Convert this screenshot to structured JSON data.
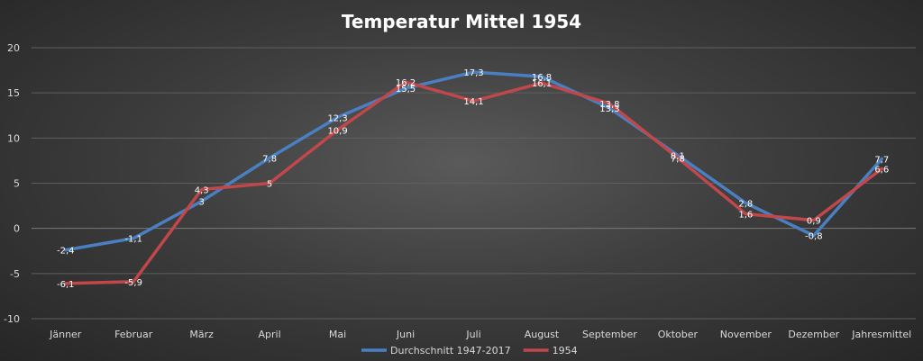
{
  "chart_data": {
    "type": "line",
    "title": "Temperatur Mittel 1954",
    "categories": [
      "Jänner",
      "Februar",
      "März",
      "April",
      "Mai",
      "Juni",
      "Juli",
      "August",
      "September",
      "Oktober",
      "November",
      "Dezember",
      "Jahresmittel"
    ],
    "ylim": [
      -10,
      20
    ],
    "yticks": [
      -10,
      -5,
      0,
      5,
      10,
      15,
      20
    ],
    "grid": true,
    "legend_position": "bottom",
    "series": [
      {
        "name": "Durchschnitt 1947-2017",
        "color": "#4a7fc1",
        "values": [
          -2.4,
          -1.1,
          3,
          7.8,
          12.3,
          15.5,
          17.3,
          16.8,
          13.3,
          8.1,
          2.8,
          -0.8,
          7.7
        ],
        "labels": [
          "-2,4",
          "-1,1",
          "3",
          "7,8",
          "12,3",
          "15,5",
          "17,3",
          "16,8",
          "13,3",
          "8,1",
          "2,8",
          "-0,8",
          "7,7"
        ]
      },
      {
        "name": "1954",
        "color": "#c0474a",
        "values": [
          -6.1,
          -5.9,
          4.3,
          5,
          10.9,
          16.2,
          14.1,
          16.1,
          13.8,
          7.8,
          1.6,
          0.9,
          6.6
        ],
        "labels": [
          "-6,1",
          "-5,9",
          "4,3",
          "5",
          "10,9",
          "16,2",
          "14,1",
          "16,1",
          "13,8",
          "7,8",
          "1,6",
          "0,9",
          "6,6"
        ]
      }
    ]
  }
}
